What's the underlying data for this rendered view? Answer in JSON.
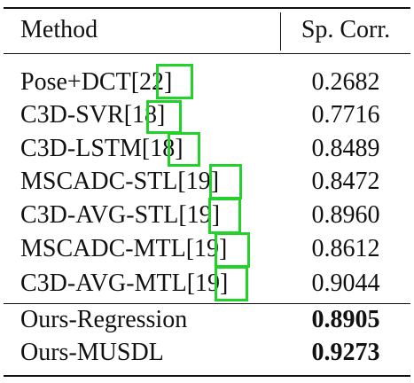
{
  "table": {
    "headers": {
      "method": "Method",
      "score": "Sp. Corr."
    },
    "rows": [
      {
        "method": "Pose+DCT",
        "citation": "22",
        "score": "0.2682",
        "bold": false
      },
      {
        "method": "C3D-SVR",
        "citation": "18",
        "score": "0.7716",
        "bold": false
      },
      {
        "method": "C3D-LSTM",
        "citation": "18",
        "score": "0.8489",
        "bold": false
      },
      {
        "method": "MSCADC-STL",
        "citation": "19",
        "score": "0.8472",
        "bold": false
      },
      {
        "method": "C3D-AVG-STL",
        "citation": "19",
        "score": "0.8960",
        "bold": false
      },
      {
        "method": "MSCADC-MTL",
        "citation": "19",
        "score": "0.8612",
        "bold": false
      },
      {
        "method": "C3D-AVG-MTL",
        "citation": "19",
        "score": "0.9044",
        "bold": false
      },
      {
        "method": "Ours-Regression",
        "citation": "",
        "score": "0.8905",
        "bold": true
      },
      {
        "method": "Ours-MUSDL",
        "citation": "",
        "score": "0.9273",
        "bold": true
      }
    ]
  },
  "colors": {
    "citation_box": "#22d12a",
    "text": "#111111"
  }
}
